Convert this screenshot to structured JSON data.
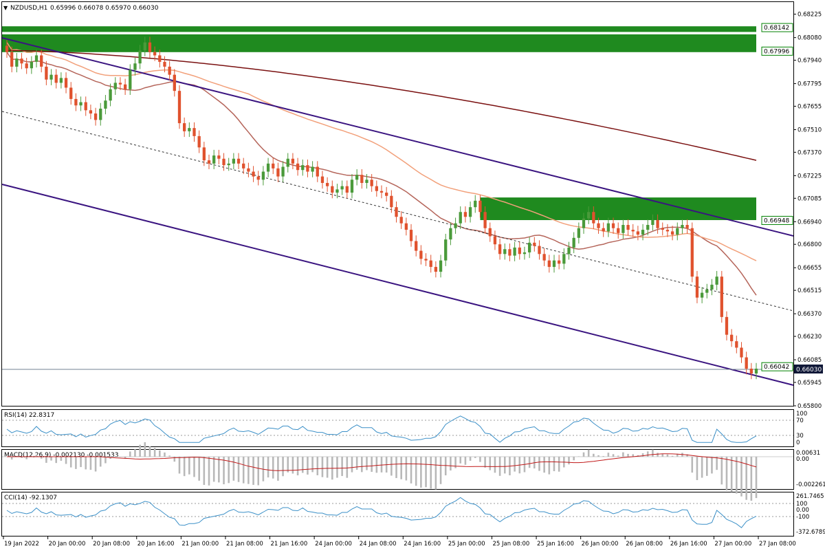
{
  "colors": {
    "bull": "#4a9a3a",
    "bear": "#e0522e",
    "zone": "#1f8a1f",
    "ma_fast": "#b5655a",
    "ma_mid": "#f2a07a",
    "ma_slow": "#7a1010",
    "channel": "#3a1480",
    "midline": "#333333",
    "rsi": "#3a8fc7",
    "macd_hist": "#b8b8b8",
    "macd_signal": "#c01818",
    "cci": "#3a8fc7",
    "current_price_bg": "#101838"
  },
  "header": {
    "symbol": "NZDUSD,H1",
    "ohlc": "0.65996 0.66078 0.65970 0.66030"
  },
  "rsi_label": "RSI(14) 22.8317",
  "macd_label": "MACD(12,26,9) -0.002130 -0.001533",
  "cci_label": "CCI(14) -92.1307",
  "price_axis": [
    "0.68225",
    "0.68080",
    "0.67940",
    "0.67795",
    "0.67655",
    "0.67510",
    "0.67370",
    "0.67225",
    "0.67085",
    "0.66940",
    "0.66800",
    "0.66655",
    "0.66515",
    "0.66370",
    "0.66230",
    "0.66085",
    "0.65945",
    "0.65800"
  ],
  "level_labels": [
    "0.68142",
    "0.67996",
    "0.66948",
    "0.66042"
  ],
  "current_price": "0.66030",
  "rsi_axis": [
    "100",
    "70",
    "30",
    "0"
  ],
  "macd_axis": [
    "0.00631",
    "0.00",
    "-0.002261"
  ],
  "cci_axis": [
    "261.7465",
    "100",
    "0.00",
    "-100",
    "-372.6789"
  ],
  "time_axis": [
    "19 Jan 2022",
    "20 Jan 00:00",
    "20 Jan 08:00",
    "20 Jan 16:00",
    "21 Jan 00:00",
    "21 Jan 08:00",
    "21 Jan 16:00",
    "24 Jan 00:00",
    "24 Jan 08:00",
    "24 Jan 16:00",
    "25 Jan 00:00",
    "25 Jan 08:00",
    "25 Jan 16:00",
    "26 Jan 00:00",
    "26 Jan 08:00",
    "26 Jan 16:00",
    "27 Jan 00:00",
    "27 Jan 08:00"
  ],
  "chart_data": {
    "type": "candlestick",
    "symbol": "NZDUSD",
    "timeframe": "H1",
    "ylim": [
      0.658,
      0.683
    ],
    "zones": [
      {
        "from": 0.68115,
        "to": 0.6815,
        "label": "0.68142",
        "x_start_bar": 0
      },
      {
        "from": 0.6799,
        "to": 0.681,
        "label": "0.67996",
        "x_start_bar": 0
      },
      {
        "from": 0.6695,
        "to": 0.6709,
        "label": "0.66948",
        "x_start_bar": 96
      }
    ],
    "horizontal_line": 0.66042,
    "closes": [
      0.6799,
      0.679,
      0.6795,
      0.6792,
      0.6789,
      0.6793,
      0.6797,
      0.679,
      0.6782,
      0.6785,
      0.678,
      0.6783,
      0.6777,
      0.677,
      0.6766,
      0.6768,
      0.6763,
      0.6761,
      0.6757,
      0.6764,
      0.6769,
      0.6776,
      0.678,
      0.6779,
      0.6776,
      0.6788,
      0.6792,
      0.68,
      0.6805,
      0.6799,
      0.6797,
      0.6793,
      0.679,
      0.6785,
      0.6775,
      0.6755,
      0.675,
      0.6752,
      0.6747,
      0.674,
      0.6732,
      0.673,
      0.6735,
      0.6733,
      0.6729,
      0.673,
      0.6733,
      0.673,
      0.6727,
      0.6725,
      0.6722,
      0.672,
      0.6725,
      0.673,
      0.6727,
      0.6722,
      0.6728,
      0.6733,
      0.673,
      0.6726,
      0.6729,
      0.6725,
      0.6728,
      0.6722,
      0.6718,
      0.6716,
      0.6712,
      0.6714,
      0.6716,
      0.6712,
      0.672,
      0.6723,
      0.6718,
      0.672,
      0.6716,
      0.6713,
      0.6712,
      0.671,
      0.6703,
      0.6697,
      0.6693,
      0.6689,
      0.6682,
      0.6676,
      0.6671,
      0.667,
      0.6666,
      0.6663,
      0.667,
      0.6683,
      0.669,
      0.6693,
      0.67,
      0.6697,
      0.6703,
      0.6707,
      0.67,
      0.669,
      0.6685,
      0.668,
      0.6674,
      0.6677,
      0.6673,
      0.6678,
      0.6674,
      0.6675,
      0.6681,
      0.6679,
      0.6674,
      0.667,
      0.6666,
      0.667,
      0.6668,
      0.6674,
      0.6678,
      0.6684,
      0.669,
      0.6696,
      0.67,
      0.6693,
      0.669,
      0.6688,
      0.6693,
      0.669,
      0.6687,
      0.6692,
      0.6689,
      0.6688,
      0.6686,
      0.6689,
      0.6692,
      0.6695,
      0.669,
      0.6689,
      0.6688,
      0.6686,
      0.669,
      0.6692,
      0.669,
      0.666,
      0.6647,
      0.665,
      0.6652,
      0.6655,
      0.666,
      0.6635,
      0.6624,
      0.662,
      0.6616,
      0.661,
      0.6603,
      0.66,
      0.6603
    ]
  }
}
